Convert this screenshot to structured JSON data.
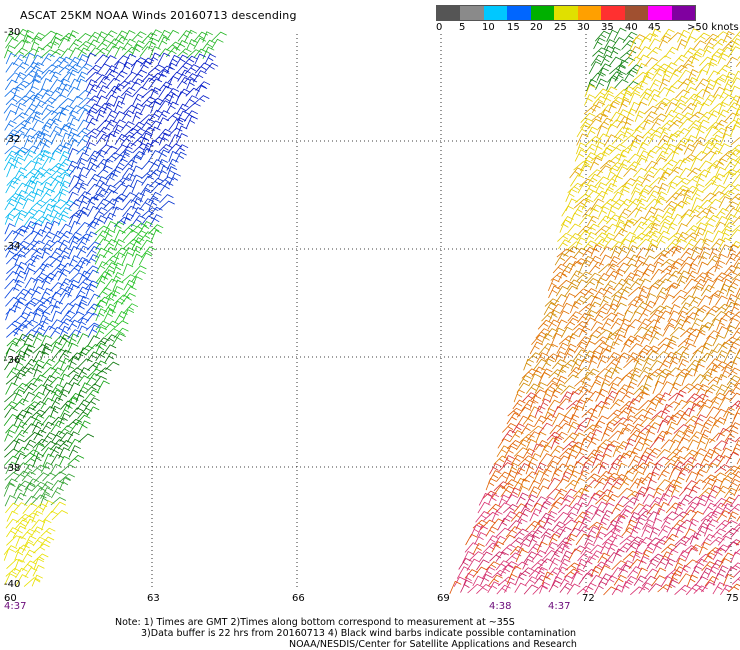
{
  "title": "ASCAT 25KM NOAA Winds 20160713 descending",
  "legend": {
    "labels": [
      "0",
      "5",
      "10",
      "15",
      "20",
      "25",
      "30",
      "35",
      "40",
      "45",
      ">50 knots"
    ],
    "colors": [
      "#555555",
      "#8a8a8a",
      "#00c8ff",
      "#0066ff",
      "#00b000",
      "#e0e000",
      "#ffa000",
      "#ff3030",
      "#a05030",
      "#ff00ff",
      "#8000a0"
    ]
  },
  "map": {
    "lat_labels": [
      "-30",
      "-32",
      "-34",
      "-36",
      "-38",
      "-40"
    ],
    "lon_labels": [
      "60",
      "63",
      "66",
      "69",
      "72",
      "75"
    ],
    "time_labels": [
      "4:37",
      "4:38",
      "4:37"
    ]
  },
  "notes": {
    "line1": "Note: 1) Times are GMT 2)Times along bottom correspond to measurement at ~35S",
    "line2": "3)Data buffer is 22 hrs from 20160713 4) Black wind barbs indicate possible contamination",
    "line3": "NOAA/NESDIS/Center for Satellite Applications and Research"
  }
}
